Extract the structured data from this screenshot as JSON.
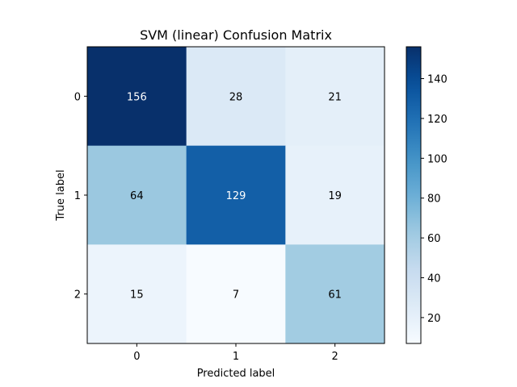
{
  "chart_data": {
    "type": "heatmap",
    "title": "SVM (linear) Confusion Matrix",
    "xlabel": "Predicted label",
    "ylabel": "True label",
    "x_categories": [
      "0",
      "1",
      "2"
    ],
    "y_categories": [
      "0",
      "1",
      "2"
    ],
    "values": [
      [
        156,
        28,
        21
      ],
      [
        64,
        129,
        19
      ],
      [
        15,
        7,
        61
      ]
    ],
    "colormap": "Blues",
    "color_range": [
      7,
      156
    ],
    "colorbar_ticks": [
      "20",
      "40",
      "60",
      "80",
      "100",
      "120",
      "140"
    ],
    "text_color_dark": "#000000",
    "text_color_light": "#ffffff"
  }
}
